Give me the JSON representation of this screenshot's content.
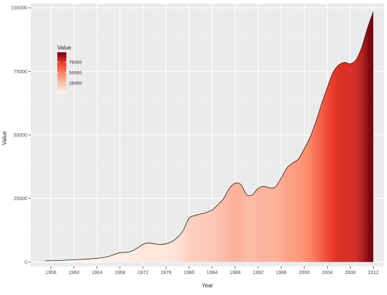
{
  "chart_data": {
    "type": "area",
    "xlabel": "Year",
    "ylabel": "Value",
    "x_ticks": [
      1956,
      1960,
      1964,
      1968,
      1972,
      1976,
      1980,
      1984,
      1988,
      1992,
      1996,
      2000,
      2004,
      2008,
      2012
    ],
    "y_ticks": [
      0,
      25000,
      50000,
      75000,
      100000
    ],
    "y_tick_labels": [
      "0",
      "25000",
      "50000",
      "75000",
      "100000"
    ],
    "xlim": [
      1952.5,
      2013.9
    ],
    "ylim": [
      -1700,
      101700
    ],
    "grid": true,
    "fill_scale": {
      "low": "#fff5f0",
      "mid": "#fc9272",
      "high": "#ef3b2c",
      "max": "#67000d"
    },
    "x": [
      1955,
      1956,
      1957,
      1958,
      1959,
      1960,
      1961,
      1962,
      1963,
      1964,
      1965,
      1966,
      1967,
      1968,
      1969,
      1970,
      1971,
      1972,
      1973,
      1974,
      1975,
      1976,
      1977,
      1978,
      1979,
      1980,
      1981,
      1982,
      1983,
      1984,
      1985,
      1986,
      1987,
      1988,
      1989,
      1990,
      1991,
      1992,
      1993,
      1994,
      1995,
      1996,
      1997,
      1998,
      1999,
      2000,
      2001,
      2002,
      2003,
      2004,
      2005,
      2006,
      2007,
      2008,
      2009,
      2010,
      2011,
      2012
    ],
    "values": [
      500,
      550,
      600,
      700,
      800,
      900,
      1000,
      1100,
      1300,
      1500,
      1700,
      2200,
      3000,
      3700,
      3800,
      4300,
      5500,
      7000,
      7500,
      7200,
      6900,
      7200,
      8000,
      9700,
      12500,
      17200,
      18300,
      18900,
      19500,
      20500,
      22500,
      25000,
      29000,
      31000,
      30500,
      26500,
      26500,
      29000,
      29800,
      29200,
      29600,
      33000,
      37000,
      39000,
      40500,
      44500,
      49000,
      55000,
      62000,
      68500,
      74500,
      77500,
      78500,
      78000,
      79500,
      84500,
      92000,
      98500
    ]
  },
  "legend": {
    "title": "Value",
    "labels": [
      "75000",
      "50000",
      "25000"
    ],
    "label_values": [
      75000,
      50000,
      25000
    ],
    "range": [
      500,
      98500
    ]
  }
}
